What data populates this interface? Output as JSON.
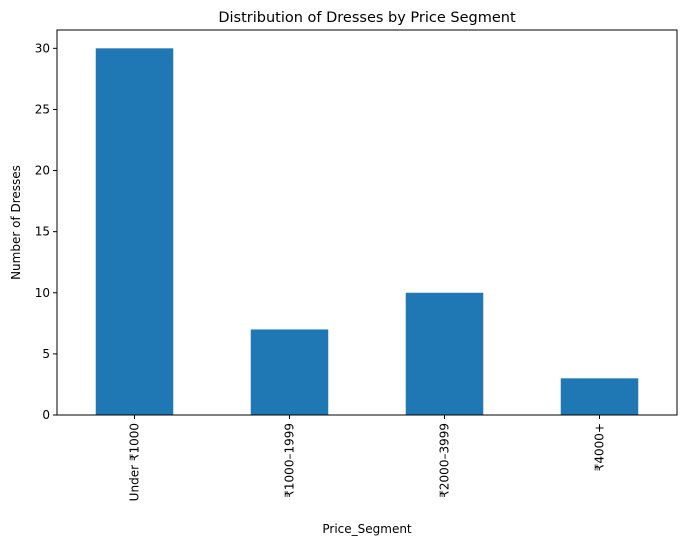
{
  "chart_data": {
    "type": "bar",
    "title": "Distribution of Dresses by Price Segment",
    "xlabel": "Price_Segment",
    "ylabel": "Number of Dresses",
    "categories": [
      "Under ₹1000",
      "₹1000–1999",
      "₹2000–3999",
      "₹4000+"
    ],
    "values": [
      30,
      7,
      10,
      3
    ],
    "ylim": [
      0,
      31.5
    ],
    "yticks": [
      0,
      5,
      10,
      15,
      20,
      25,
      30
    ],
    "grid": false,
    "bar_color": "#1f77b4"
  }
}
